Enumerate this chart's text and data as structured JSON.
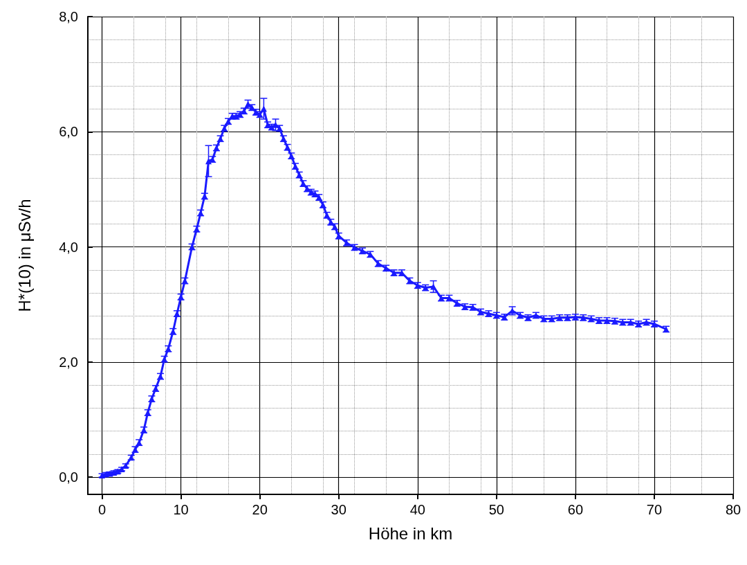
{
  "chart_data": {
    "type": "line",
    "xlabel": "Höhe in km",
    "ylabel": "H*(10) in μSv/h",
    "x": [
      0,
      0.5,
      1,
      1.5,
      2,
      2.5,
      3,
      3.7,
      4.2,
      4.7,
      5.3,
      5.8,
      6.3,
      6.8,
      7.4,
      7.9,
      8.4,
      9,
      9.5,
      10,
      10.5,
      11.4,
      12,
      12.5,
      13,
      13.5,
      14,
      14.5,
      15,
      15.5,
      16,
      16.5,
      17,
      17.5,
      18,
      18.5,
      19,
      19.5,
      20,
      20.5,
      21,
      21.5,
      22,
      22.5,
      23,
      23.5,
      24,
      24.5,
      25,
      25.5,
      26,
      26.5,
      27,
      27.5,
      28,
      28.5,
      29,
      29.5,
      30,
      31,
      32,
      33,
      34,
      35,
      36,
      37,
      38,
      39,
      40,
      41,
      42,
      43,
      44,
      45,
      46,
      47,
      48,
      49,
      50,
      51,
      52,
      53,
      54,
      55,
      56,
      57,
      58,
      59,
      60,
      61,
      62,
      63,
      64,
      65,
      66,
      67,
      68,
      69,
      70,
      71.5
    ],
    "series": [
      {
        "color": "#1a1aff",
        "values": [
          0.03,
          0.05,
          0.06,
          0.08,
          0.1,
          0.14,
          0.2,
          0.34,
          0.48,
          0.6,
          0.82,
          1.12,
          1.36,
          1.54,
          1.75,
          2.05,
          2.23,
          2.53,
          2.84,
          3.13,
          3.41,
          4.0,
          4.31,
          4.59,
          4.88,
          5.49,
          5.52,
          5.72,
          5.88,
          6.06,
          6.18,
          6.27,
          6.27,
          6.3,
          6.36,
          6.48,
          6.42,
          6.34,
          6.3,
          6.4,
          6.12,
          6.08,
          6.12,
          6.06,
          5.88,
          5.73,
          5.58,
          5.4,
          5.25,
          5.1,
          5.01,
          4.95,
          4.92,
          4.86,
          4.73,
          4.55,
          4.43,
          4.35,
          4.19,
          4.07,
          3.99,
          3.93,
          3.87,
          3.71,
          3.63,
          3.55,
          3.55,
          3.41,
          3.33,
          3.29,
          3.31,
          3.11,
          3.11,
          3.02,
          2.96,
          2.95,
          2.87,
          2.84,
          2.81,
          2.78,
          2.89,
          2.81,
          2.77,
          2.81,
          2.75,
          2.75,
          2.77,
          2.77,
          2.78,
          2.77,
          2.75,
          2.72,
          2.72,
          2.71,
          2.69,
          2.69,
          2.66,
          2.69,
          2.66,
          2.57
        ],
        "errors": [
          0.03,
          0.03,
          0.03,
          0.03,
          0.03,
          0.03,
          0.03,
          0.04,
          0.05,
          0.05,
          0.05,
          0.05,
          0.05,
          0.05,
          0.05,
          0.05,
          0.05,
          0.05,
          0.05,
          0.05,
          0.05,
          0.05,
          0.05,
          0.05,
          0.05,
          0.27,
          0.05,
          0.05,
          0.05,
          0.05,
          0.05,
          0.05,
          0.05,
          0.05,
          0.05,
          0.07,
          0.05,
          0.05,
          0.05,
          0.18,
          0.05,
          0.05,
          0.1,
          0.05,
          0.05,
          0.05,
          0.05,
          0.05,
          0.05,
          0.05,
          0.05,
          0.05,
          0.05,
          0.05,
          0.05,
          0.05,
          0.05,
          0.05,
          0.05,
          0.05,
          0.05,
          0.05,
          0.05,
          0.05,
          0.05,
          0.05,
          0.05,
          0.05,
          0.05,
          0.05,
          0.1,
          0.05,
          0.05,
          0.05,
          0.05,
          0.05,
          0.05,
          0.05,
          0.05,
          0.05,
          0.07,
          0.05,
          0.05,
          0.05,
          0.05,
          0.05,
          0.05,
          0.05,
          0.05,
          0.05,
          0.05,
          0.05,
          0.05,
          0.05,
          0.05,
          0.05,
          0.05,
          0.05,
          0.05,
          0.05
        ]
      }
    ],
    "xlim": [
      -1.8,
      80
    ],
    "xticks": [
      0,
      10,
      20,
      30,
      40,
      50,
      60,
      70,
      80
    ],
    "ylim": [
      -0.3,
      8
    ],
    "yticks": [
      {
        "value": 0,
        "label": "0,0"
      },
      {
        "value": 2,
        "label": "2,0"
      },
      {
        "value": 4,
        "label": "4,0"
      },
      {
        "value": 6,
        "label": "6,0"
      },
      {
        "value": 8,
        "label": "8,0"
      }
    ],
    "grid": true,
    "marker": "triangle",
    "line_style": "solid"
  }
}
